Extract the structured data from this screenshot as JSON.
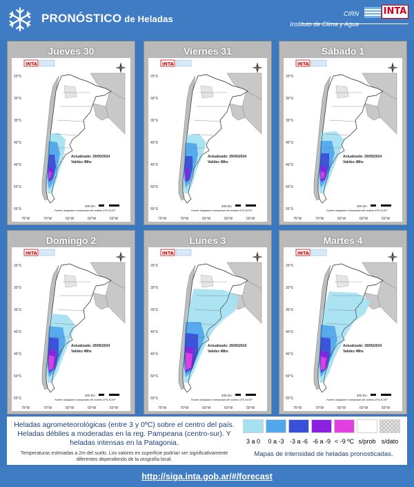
{
  "header": {
    "title": "PRONÓSTICO",
    "title_suffix": "de Heladas",
    "org_line1": "CIRN",
    "org_line2": "Instituto de Clima y Agua",
    "logo_text": "INTA"
  },
  "panels": [
    {
      "day": "Jueves 30",
      "updated": "Actualizado: 29/05/2024",
      "validity": "Validez 48hs"
    },
    {
      "day": "Viernes 31",
      "updated": "Actualizado: 29/05/2024",
      "validity": "Validez 48hs"
    },
    {
      "day": "Sábado 1",
      "updated": "Actualizado: 29/05/2024",
      "validity": "Validez 48hs"
    },
    {
      "day": "Domingo 2",
      "updated": "Actualizado: 29/05/2024",
      "validity": "Validez 48hs"
    },
    {
      "day": "Lunes 3",
      "updated": "Actualizado: 29/05/2024",
      "validity": "Validez 48hs"
    },
    {
      "day": "Martes 4",
      "updated": "Actualizado: 29/05/2024",
      "validity": "Validez 48hs"
    }
  ],
  "map": {
    "lat_labels": [
      "25°S",
      "30°S",
      "35°S",
      "40°S",
      "45°S",
      "50°S",
      "55°S"
    ],
    "lon_labels": [
      "75°W",
      "70°W",
      "65°W",
      "60°W",
      "55°W"
    ],
    "scale_label": "400 km",
    "source": "Fuente: Adaptado e interpolado del modelo GFS-NCEP",
    "logo_text": "INTA"
  },
  "legend": {
    "text": "Heladas agrometeorológicas (entre 3 y 0ºC) sobre el centro del país. Heladas débiles a moderadas en la reg. Pampeana (centro-sur). Y heladas intensas en la Patagonia.",
    "note": "Temperaturas estimadas a 2m del suelo. Los valores en superficie podrían ser significativamente diferentes dependiendo de la orografía local.",
    "classes": [
      {
        "label": "3 a 0",
        "color": "#a6e1f2"
      },
      {
        "label": "0 a -3",
        "color": "#52a8ec"
      },
      {
        "label": "-3 a -6",
        "color": "#3a4fd8"
      },
      {
        "label": "-6 a -9",
        "color": "#8a20e0"
      },
      {
        "label": "< -9 ºC",
        "color": "#e040e0"
      },
      {
        "label": "s/prob",
        "color": "#ffffff"
      },
      {
        "label": "s/dato",
        "color": "#e8e8e8"
      }
    ],
    "caption": "Mapas de intensidad de heladas pronosticadas."
  },
  "footer": {
    "url": "http://siga.inta.gob.ar/#/forecast"
  }
}
